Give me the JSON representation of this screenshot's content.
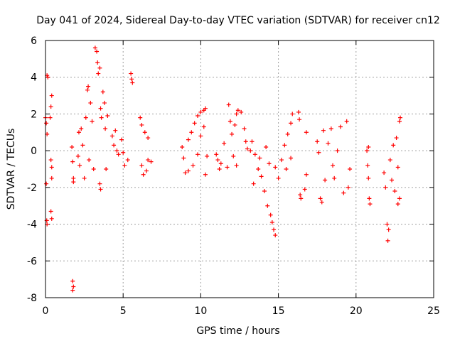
{
  "chart_data": {
    "type": "scatter",
    "title": "Day 041 of 2024, Sidereal Day-to-day VTEC variation (SDTVAR) for receiver cn12",
    "xlabel": "GPS time / hours",
    "ylabel": "SDTVAR / TECUs",
    "xlim": [
      0,
      25
    ],
    "ylim": [
      -8,
      6
    ],
    "xticks": [
      "0",
      "5",
      "10",
      "15",
      "20",
      "25"
    ],
    "yticks": [
      "-8",
      "-6",
      "-4",
      "-2",
      "0",
      "2",
      "4",
      "6"
    ],
    "grid": true,
    "marker": "+",
    "color": "#ff0000",
    "series": [
      {
        "name": "",
        "points": [
          [
            0.0,
            1.8
          ],
          [
            0.05,
            1.5
          ],
          [
            0.1,
            0.9
          ],
          [
            0.1,
            4.1
          ],
          [
            0.15,
            4.0
          ],
          [
            0.05,
            -1.8
          ],
          [
            0.08,
            -3.8
          ],
          [
            0.1,
            -4.0
          ],
          [
            0.3,
            1.8
          ],
          [
            0.35,
            2.4
          ],
          [
            0.4,
            3.0
          ],
          [
            0.35,
            -0.5
          ],
          [
            0.4,
            -0.9
          ],
          [
            0.4,
            -1.5
          ],
          [
            0.35,
            -3.3
          ],
          [
            0.4,
            -3.7
          ],
          [
            1.7,
            0.2
          ],
          [
            1.75,
            -0.6
          ],
          [
            1.8,
            -1.5
          ],
          [
            1.8,
            -1.7
          ],
          [
            1.75,
            -7.1
          ],
          [
            1.8,
            -7.4
          ],
          [
            1.75,
            -7.6
          ],
          [
            2.1,
            -0.3
          ],
          [
            2.15,
            1.0
          ],
          [
            2.2,
            -0.8
          ],
          [
            2.3,
            1.2
          ],
          [
            2.4,
            0.3
          ],
          [
            2.5,
            -1.5
          ],
          [
            2.6,
            1.8
          ],
          [
            2.7,
            3.3
          ],
          [
            2.75,
            3.5
          ],
          [
            2.8,
            -0.5
          ],
          [
            2.9,
            2.6
          ],
          [
            3.0,
            1.6
          ],
          [
            3.1,
            -1.0
          ],
          [
            3.2,
            5.6
          ],
          [
            3.3,
            5.4
          ],
          [
            3.35,
            4.8
          ],
          [
            3.4,
            4.2
          ],
          [
            3.5,
            4.5
          ],
          [
            3.55,
            2.3
          ],
          [
            3.6,
            1.8
          ],
          [
            3.5,
            -1.8
          ],
          [
            3.55,
            -2.1
          ],
          [
            3.7,
            3.2
          ],
          [
            3.8,
            2.6
          ],
          [
            3.85,
            1.2
          ],
          [
            3.9,
            -1.0
          ],
          [
            4.0,
            1.9
          ],
          [
            4.3,
            0.8
          ],
          [
            4.4,
            0.3
          ],
          [
            4.5,
            1.1
          ],
          [
            4.6,
            0.0
          ],
          [
            4.7,
            -0.2
          ],
          [
            4.9,
            0.6
          ],
          [
            5.0,
            -0.1
          ],
          [
            5.1,
            -0.8
          ],
          [
            5.3,
            -0.5
          ],
          [
            5.5,
            4.2
          ],
          [
            5.55,
            3.9
          ],
          [
            5.6,
            3.7
          ],
          [
            6.1,
            1.8
          ],
          [
            6.2,
            1.4
          ],
          [
            6.4,
            1.0
          ],
          [
            6.6,
            0.7
          ],
          [
            6.2,
            -0.8
          ],
          [
            6.3,
            -1.3
          ],
          [
            6.5,
            -1.1
          ],
          [
            6.6,
            -0.5
          ],
          [
            6.8,
            -0.6
          ],
          [
            8.8,
            0.2
          ],
          [
            8.9,
            -0.4
          ],
          [
            9.0,
            -1.2
          ],
          [
            9.2,
            0.6
          ],
          [
            9.4,
            1.0
          ],
          [
            9.6,
            1.5
          ],
          [
            9.8,
            1.9
          ],
          [
            10.0,
            2.1
          ],
          [
            10.2,
            2.2
          ],
          [
            10.3,
            2.3
          ],
          [
            9.2,
            -1.1
          ],
          [
            9.5,
            -0.8
          ],
          [
            9.8,
            -0.2
          ],
          [
            10.0,
            0.8
          ],
          [
            10.2,
            1.3
          ],
          [
            10.3,
            -1.3
          ],
          [
            10.4,
            -0.3
          ],
          [
            11.0,
            -0.2
          ],
          [
            11.1,
            -0.5
          ],
          [
            11.2,
            -1.0
          ],
          [
            11.3,
            -0.7
          ],
          [
            11.5,
            0.4
          ],
          [
            11.7,
            -0.9
          ],
          [
            11.8,
            2.5
          ],
          [
            11.9,
            1.6
          ],
          [
            12.0,
            0.9
          ],
          [
            12.2,
            1.4
          ],
          [
            12.3,
            2.0
          ],
          [
            12.4,
            2.2
          ],
          [
            12.6,
            2.1
          ],
          [
            12.8,
            1.2
          ],
          [
            12.9,
            0.5
          ],
          [
            12.1,
            -0.3
          ],
          [
            12.3,
            -0.8
          ],
          [
            13.0,
            0.1
          ],
          [
            13.2,
            0.0
          ],
          [
            13.3,
            0.5
          ],
          [
            13.5,
            -0.2
          ],
          [
            13.7,
            -1.0
          ],
          [
            13.9,
            -1.4
          ],
          [
            14.1,
            -2.2
          ],
          [
            14.3,
            -3.0
          ],
          [
            14.5,
            -3.5
          ],
          [
            14.6,
            -3.9
          ],
          [
            14.7,
            -4.3
          ],
          [
            14.8,
            -4.6
          ],
          [
            13.4,
            -1.8
          ],
          [
            13.8,
            -0.4
          ],
          [
            14.2,
            0.2
          ],
          [
            14.4,
            -0.7
          ],
          [
            14.8,
            -0.9
          ],
          [
            15.0,
            -1.5
          ],
          [
            15.2,
            -0.5
          ],
          [
            15.4,
            0.3
          ],
          [
            15.6,
            0.9
          ],
          [
            15.8,
            1.5
          ],
          [
            15.9,
            2.0
          ],
          [
            15.5,
            -1.0
          ],
          [
            15.8,
            -0.4
          ],
          [
            16.3,
            2.1
          ],
          [
            16.35,
            1.7
          ],
          [
            16.4,
            -2.4
          ],
          [
            16.45,
            -2.6
          ],
          [
            16.8,
            1.0
          ],
          [
            16.8,
            -1.3
          ],
          [
            16.7,
            -2.1
          ],
          [
            17.5,
            0.5
          ],
          [
            17.6,
            -0.1
          ],
          [
            17.7,
            -2.6
          ],
          [
            17.8,
            -2.8
          ],
          [
            17.9,
            1.1
          ],
          [
            18.0,
            -1.6
          ],
          [
            18.2,
            0.4
          ],
          [
            18.4,
            1.2
          ],
          [
            18.5,
            -0.8
          ],
          [
            18.6,
            -1.5
          ],
          [
            18.8,
            0.0
          ],
          [
            19.0,
            1.3
          ],
          [
            19.2,
            -2.3
          ],
          [
            19.4,
            1.6
          ],
          [
            19.5,
            -2.0
          ],
          [
            19.6,
            -1.0
          ],
          [
            20.7,
            0.0
          ],
          [
            20.75,
            -0.8
          ],
          [
            20.8,
            -1.5
          ],
          [
            20.85,
            -2.6
          ],
          [
            20.9,
            -2.9
          ],
          [
            20.8,
            0.2
          ],
          [
            21.8,
            -1.2
          ],
          [
            21.9,
            -2.0
          ],
          [
            22.0,
            -4.0
          ],
          [
            22.05,
            -4.9
          ],
          [
            22.1,
            -4.3
          ],
          [
            22.2,
            -0.5
          ],
          [
            22.3,
            -1.6
          ],
          [
            22.4,
            0.3
          ],
          [
            22.5,
            -2.2
          ],
          [
            22.6,
            0.7
          ],
          [
            22.7,
            -0.9
          ],
          [
            22.8,
            1.6
          ],
          [
            22.85,
            1.8
          ],
          [
            22.8,
            -2.6
          ],
          [
            22.7,
            -2.9
          ]
        ]
      }
    ]
  }
}
